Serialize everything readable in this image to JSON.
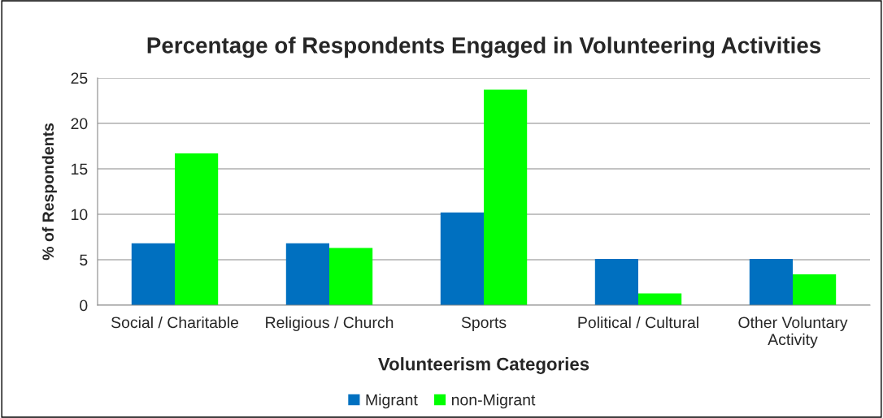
{
  "chart_data": {
    "type": "bar",
    "title": "Percentage of Respondents Engaged in Volunteering Activities",
    "xlabel": "Volunteerism Categories",
    "ylabel": "% of Respondents",
    "categories": [
      "Social / Charitable",
      "Religious / Church",
      "Sports",
      "Political / Cultural",
      "Other Voluntary\nActivity"
    ],
    "series": [
      {
        "name": "Migrant",
        "color": "#0070c0",
        "values": [
          6.8,
          6.8,
          10.2,
          5.1,
          5.1
        ]
      },
      {
        "name": "non-Migrant",
        "color": "#00ff00",
        "values": [
          16.7,
          6.3,
          23.7,
          1.3,
          3.4
        ]
      }
    ],
    "ylim": [
      0,
      25
    ],
    "yticks": [
      0,
      5,
      10,
      15,
      20,
      25
    ],
    "grid": "y",
    "legend": "bottom"
  }
}
